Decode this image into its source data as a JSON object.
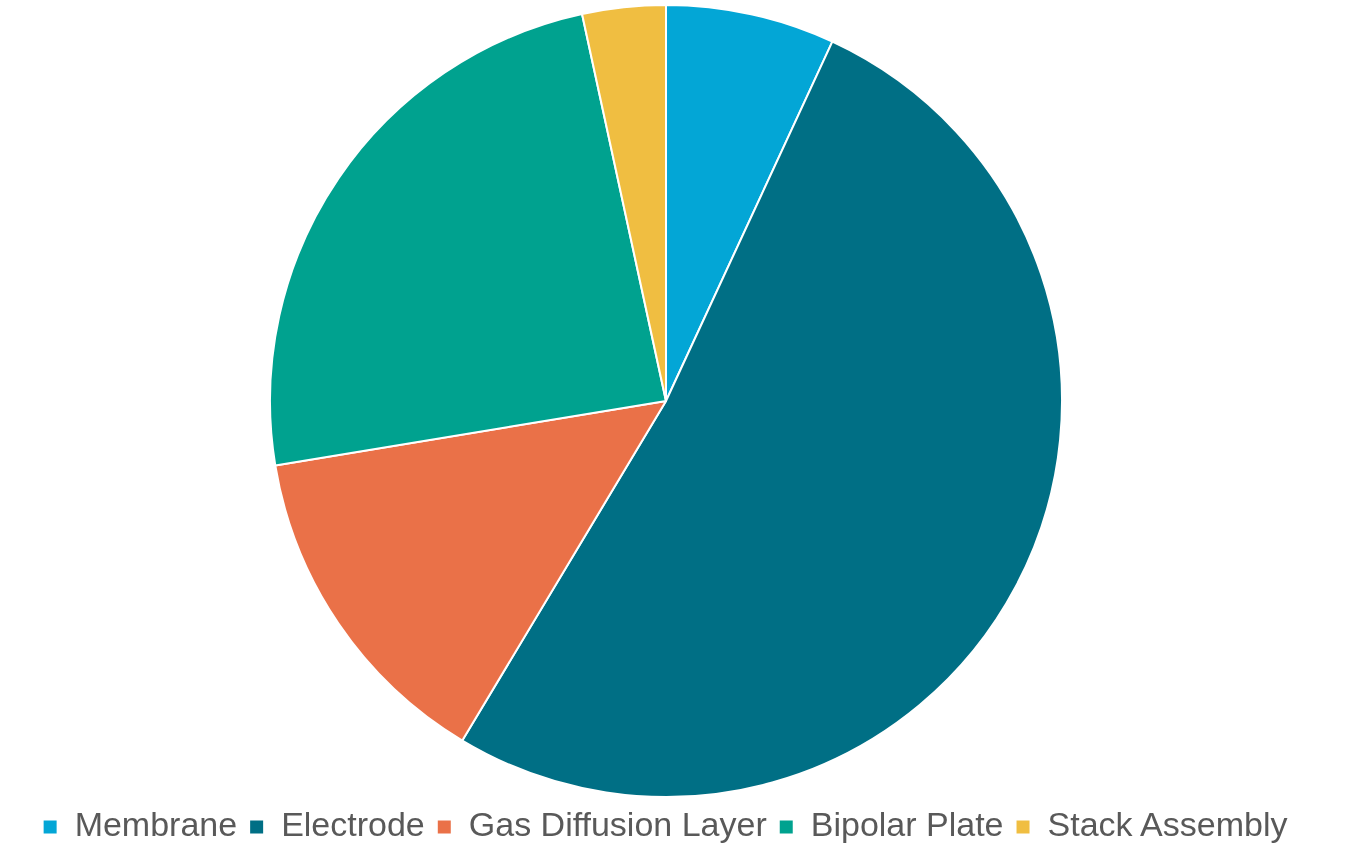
{
  "chart_data": {
    "type": "pie",
    "categories": [
      "Membrane",
      "Electrode",
      "Gas Diffusion Layer",
      "Bipolar Plate",
      "Stack Assembly"
    ],
    "values": [
      6.9,
      51.7,
      13.8,
      24.2,
      3.4
    ],
    "colors": [
      "#03a6d6",
      "#006f85",
      "#ea7148",
      "#00a28f",
      "#f0be41"
    ],
    "legend": "bottom"
  }
}
